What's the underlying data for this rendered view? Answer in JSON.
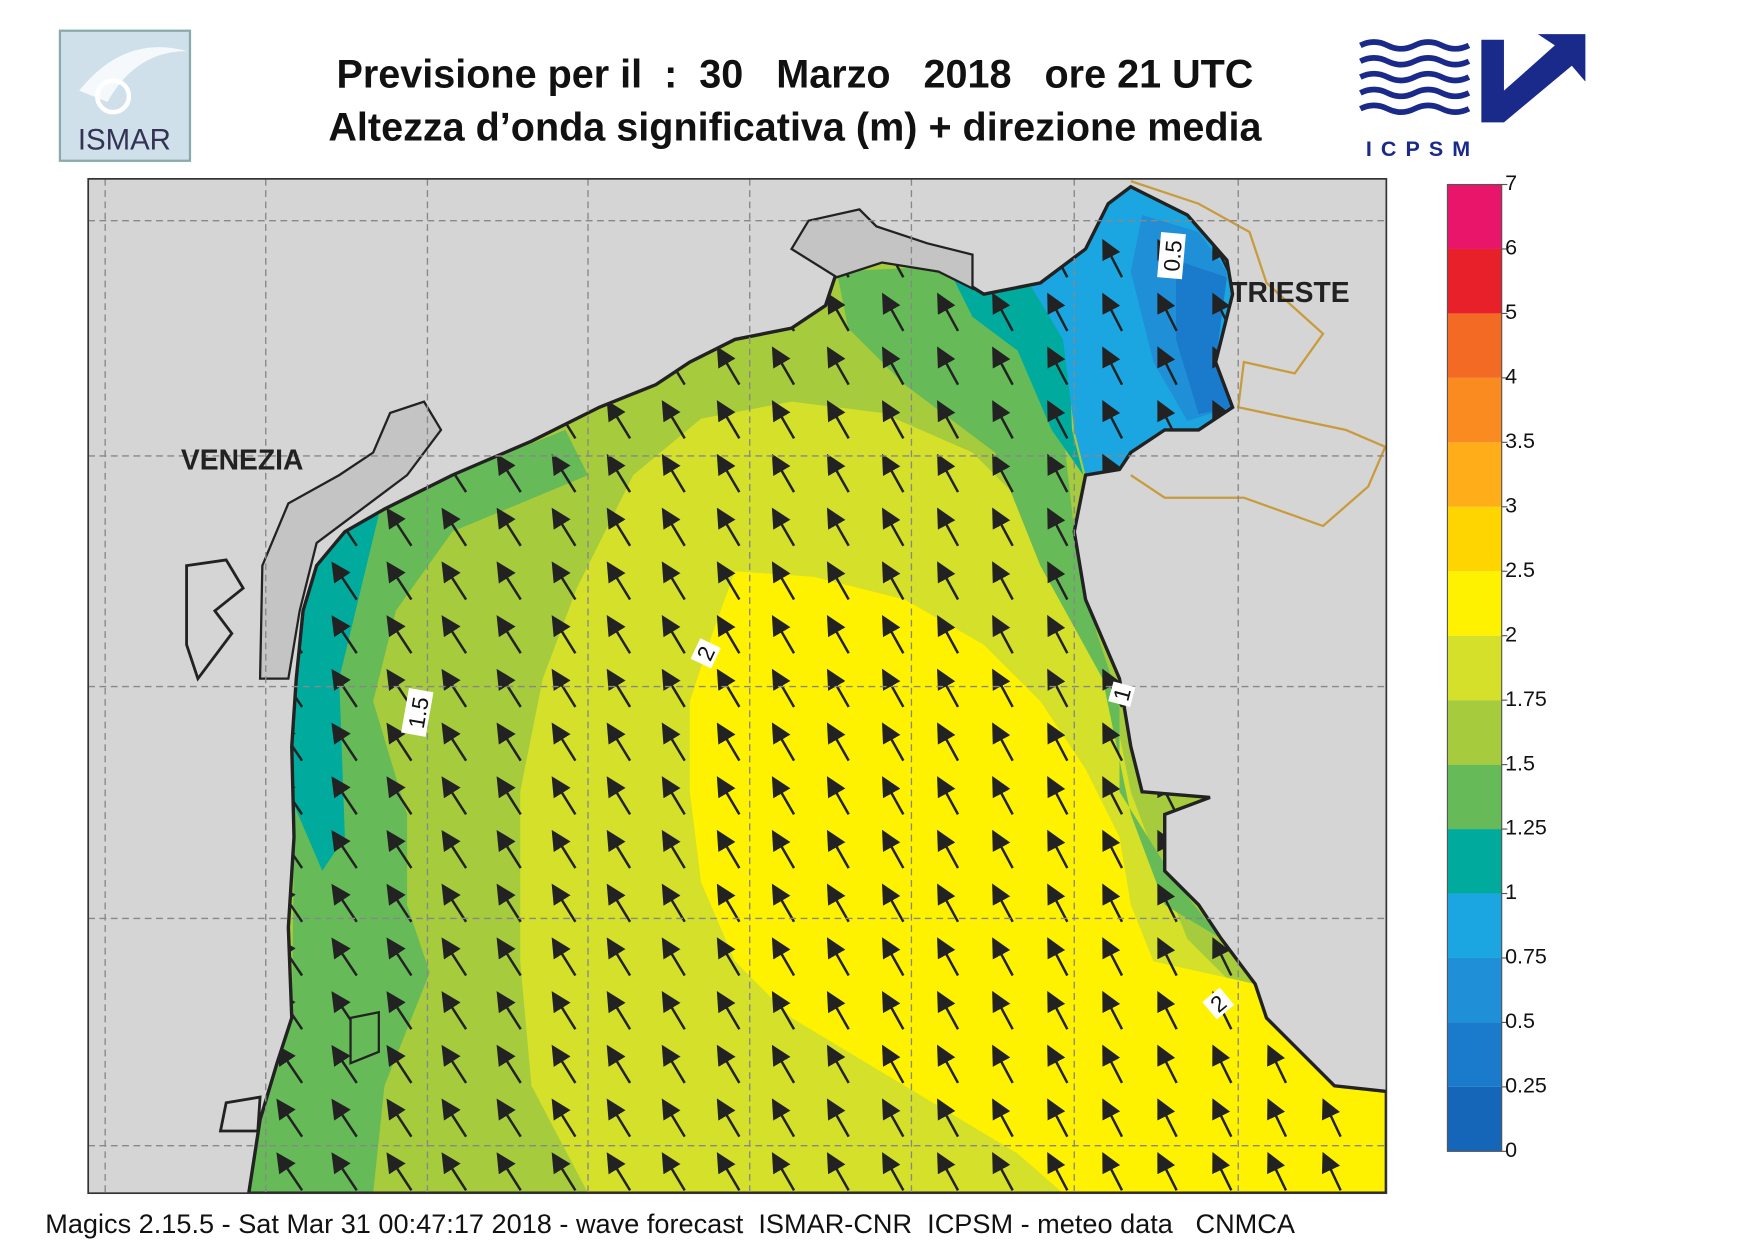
{
  "header": {
    "title_line1": "Previsione per il  :  30   Marzo   2018   ore 21 UTC",
    "title_line2": "Altezza d’onda significativa (m) + direzione media",
    "logo_left": "ISMAR",
    "logo_right": "ICPSM"
  },
  "map": {
    "cities": [
      "VENEZIA",
      "TRIESTE"
    ],
    "contour_labels": [
      "0.5",
      "1",
      "1.5",
      "2",
      "2"
    ]
  },
  "colorbar": {
    "levels": [
      0,
      0.25,
      0.5,
      0.75,
      1,
      1.25,
      1.5,
      1.75,
      2,
      2.5,
      3,
      3.5,
      4,
      5,
      6,
      7
    ],
    "colors": [
      "#1565b8",
      "#1a7acb",
      "#1f8fd8",
      "#1ba6e2",
      "#00ab9e",
      "#66bb58",
      "#a6cb3c",
      "#d4e02a",
      "#fff200",
      "#ffd500",
      "#ffae1a",
      "#f98b20",
      "#f26a24",
      "#e8202a",
      "#e8156a"
    ]
  },
  "footer": "Magics 2.15.5 - Sat Mar 31 00:47:17 2018 - wave forecast  ISMAR-CNR  ICPSM - meteo data   CNMCA"
}
